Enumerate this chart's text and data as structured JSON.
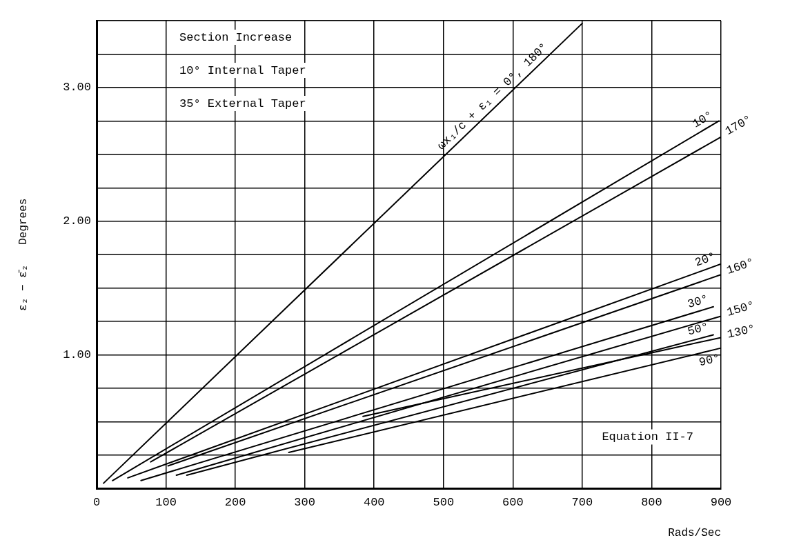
{
  "chart_data": {
    "type": "line",
    "xlabel": "Rads/Sec",
    "ylabel": "ε₂ − ε̄₂   Degrees",
    "annotations": [
      "Section Increase",
      "10° Internal Taper",
      "35° External Taper",
      "Equation II-7"
    ],
    "xlim": [
      0,
      900
    ],
    "xticks": [
      0,
      100,
      200,
      300,
      400,
      500,
      600,
      700,
      800,
      900
    ],
    "ylim": [
      0,
      3.5
    ],
    "yticks": [
      {
        "value": 0,
        "label": null
      },
      {
        "value": 0.25,
        "label": null
      },
      {
        "value": 0.5,
        "label": null
      },
      {
        "value": 0.75,
        "label": null
      },
      {
        "value": 1,
        "label": "1.00"
      },
      {
        "value": 1.25,
        "label": null
      },
      {
        "value": 1.5,
        "label": null
      },
      {
        "value": 1.75,
        "label": null
      },
      {
        "value": 2,
        "label": "2.00"
      },
      {
        "value": 2.25,
        "label": null
      },
      {
        "value": 2.5,
        "label": null
      },
      {
        "value": 2.75,
        "label": null
      },
      {
        "value": 3,
        "label": "3.00"
      },
      {
        "value": 3.25,
        "label": null
      },
      {
        "value": 3.5,
        "label": null
      }
    ],
    "grid": true,
    "legend": false,
    "marker": "none",
    "line_style": "solid",
    "series": [
      {
        "name": "ωx₁/c + ε₁ = 0°, 180°",
        "color": "#000000",
        "x": [
          10,
          700
        ],
        "values": [
          0.04,
          3.48
        ]
      },
      {
        "name": "10°",
        "color": "#000000",
        "x": [
          23,
          897
        ],
        "values": [
          0.06,
          2.75
        ]
      },
      {
        "name": "170°",
        "color": "#000000",
        "x": [
          78,
          900
        ],
        "values": [
          0.2,
          2.63
        ]
      },
      {
        "name": "20°",
        "color": "#000000",
        "x": [
          45,
          900
        ],
        "values": [
          0.08,
          1.68
        ]
      },
      {
        "name": "160°",
        "color": "#000000",
        "x": [
          103,
          900
        ],
        "values": [
          0.17,
          1.6
        ]
      },
      {
        "name": "30°",
        "color": "#000000",
        "x": [
          64,
          889
        ],
        "values": [
          0.06,
          1.36
        ]
      },
      {
        "name": "150°",
        "color": "#000000",
        "x": [
          115,
          900
        ],
        "values": [
          0.1,
          1.29
        ]
      },
      {
        "name": "50°",
        "color": "#000000",
        "x": [
          130,
          889
        ],
        "values": [
          0.1,
          1.15
        ]
      },
      {
        "name": "130°",
        "color": "#000000",
        "x": [
          384,
          900
        ],
        "values": [
          0.54,
          1.13
        ]
      },
      {
        "name": "90°",
        "color": "#000000",
        "x": [
          277,
          899
        ],
        "values": [
          0.27,
          1.05
        ]
      }
    ]
  }
}
